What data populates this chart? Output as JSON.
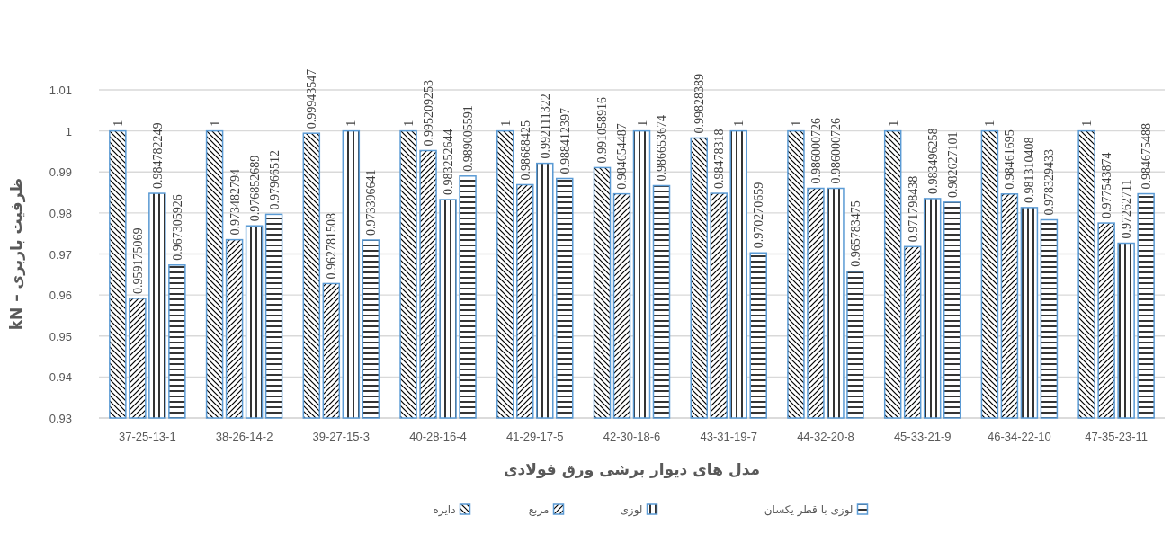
{
  "chart_data": {
    "type": "bar",
    "xlabel": "مدل های دیوار برشی ورق فولادی",
    "ylabel": "ظرفیت باربری – kN",
    "categories": [
      "37-25-13-1",
      "38-26-14-2",
      "39-27-15-3",
      "40-28-16-4",
      "41-29-17-5",
      "42-30-18-6",
      "43-31-19-7",
      "44-32-20-8",
      "45-33-21-9",
      "46-34-22-10",
      "47-35-23-11"
    ],
    "series": [
      {
        "name": "دایره",
        "color": "#5b9bd5",
        "values": [
          1,
          1,
          0.99943547,
          1,
          1,
          0.991058916,
          0.99828389,
          1,
          1,
          1,
          1
        ],
        "value_labels": [
          "1",
          "1",
          "0.99943547",
          "1",
          "1",
          "0.991058916",
          "0.99828389",
          "1",
          "1",
          "1",
          "1"
        ]
      },
      {
        "name": "مربع",
        "color": "#5b9bd5",
        "values": [
          0.959175069,
          0.973482794,
          0.962781508,
          0.995209253,
          0.98688425,
          0.984654487,
          0.98478318,
          0.986000726,
          0.971798438,
          0.98461695,
          0.977543874
        ],
        "value_labels": [
          "0.959175069",
          "0.973482794",
          "0.962781508",
          "0.995209253",
          "0.98688425",
          "0.984654487",
          "0.98478318",
          "0.986000726",
          "0.971798438",
          "0.98461695",
          "0.977543874"
        ]
      },
      {
        "name": "لوزی",
        "color": "#5b9bd5",
        "values": [
          0.984782249,
          0.976852689,
          1,
          0.983252644,
          0.992111322,
          1,
          1,
          0.986000726,
          0.983496258,
          0.981310408,
          0.97262711
        ],
        "value_labels": [
          "0.984782249",
          "0.976852689",
          "1",
          "0.983252644",
          "0.992111322",
          "1",
          "1",
          "0.986000726",
          "0.983496258",
          "0.981310408",
          "0.97262711"
        ]
      },
      {
        "name": "لوزی با قطر یکسان",
        "color": "#5b9bd5",
        "values": [
          0.967305926,
          0.97966512,
          0.973396641,
          0.989005591,
          0.988412397,
          0.986653674,
          0.970270659,
          0.965783475,
          0.982627101,
          0.978329433,
          0.984675488
        ],
        "value_labels": [
          "0.967305926",
          "0.97966512",
          "0.973396641",
          "0.989005591",
          "0.988412397",
          "0.986653674",
          "0.970270659",
          "0.965783475",
          "0.982627101",
          "0.978329433",
          "0.984675488"
        ]
      }
    ],
    "ylim": [
      0.93,
      1.01
    ],
    "yticks": [
      0.93,
      0.94,
      0.95,
      0.96,
      0.97,
      0.98,
      0.99,
      1,
      1.01
    ],
    "grid": "y",
    "legend": "bottom"
  }
}
